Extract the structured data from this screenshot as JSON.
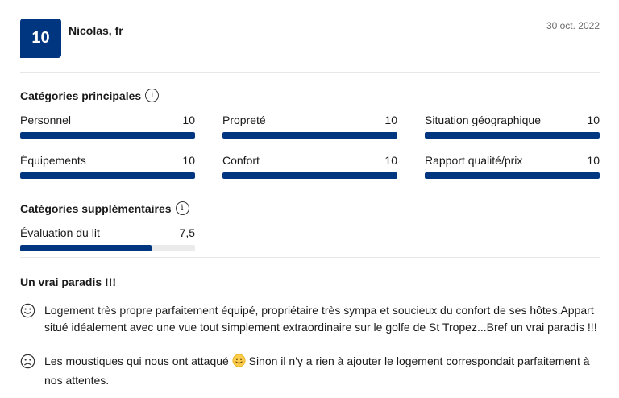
{
  "review": {
    "score": "10",
    "reviewer": "Nicolas, fr",
    "date": "30 oct. 2022"
  },
  "main_categories": {
    "title": "Catégories principales",
    "items": [
      {
        "label": "Personnel",
        "value": "10",
        "fill": 1.0
      },
      {
        "label": "Propreté",
        "value": "10",
        "fill": 1.0
      },
      {
        "label": "Situation géographique",
        "value": "10",
        "fill": 1.0
      },
      {
        "label": "Équipements",
        "value": "10",
        "fill": 1.0
      },
      {
        "label": "Confort",
        "value": "10",
        "fill": 1.0
      },
      {
        "label": "Rapport qualité/prix",
        "value": "10",
        "fill": 1.0
      }
    ]
  },
  "extra_categories": {
    "title": "Catégories supplémentaires",
    "items": [
      {
        "label": "Évaluation du lit",
        "value": "7,5",
        "fill": 0.75
      }
    ]
  },
  "review_body": {
    "title": "Un vrai paradis !!!",
    "positive": "Logement très propre parfaitement équipé, propriétaire très sympa et soucieux du confort de ses hôtes.Appart situé idéalement avec une vue tout simplement extraordinaire sur le golfe de St Tropez...Bref un vrai paradis !!!",
    "negative_before": "Les moustiques qui nous ont attaqué",
    "negative_after": "Sinon il n'y a rien à ajouter le logement correspondait parfaitement à nos attentes."
  },
  "icons": {
    "info": "info-circle-icon",
    "positive": "smiley-face-icon",
    "negative": "frown-face-icon",
    "inline": "smile-emoji-icon"
  },
  "colors": {
    "accent": "#003580",
    "bar_track": "#ebebeb",
    "emoji_yellow": "#ffcc4d"
  }
}
